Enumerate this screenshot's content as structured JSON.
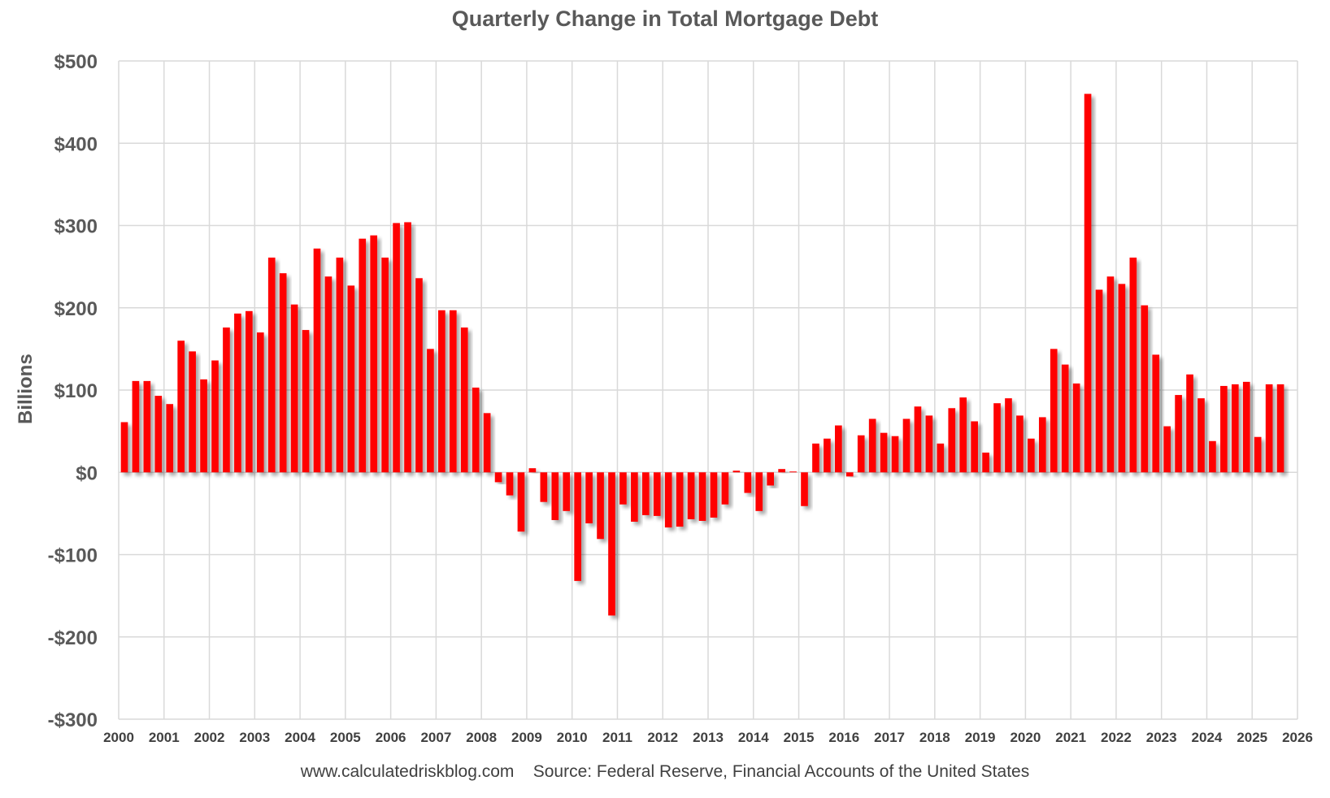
{
  "chart_data": {
    "type": "bar",
    "title": "Quarterly Change in Total Mortgage Debt",
    "ylabel": "Billions",
    "xlabel": "",
    "source": "www.calculatedriskblog.com    Source: Federal Reserve, Financial Accounts of the United States",
    "ylim": [
      -300,
      500
    ],
    "yticks": [
      500,
      400,
      300,
      200,
      100,
      0,
      -100,
      -200,
      -300
    ],
    "ytick_labels": [
      "$500",
      "$400",
      "$300",
      "$200",
      "$100",
      "$0",
      "-$100",
      "-$200",
      "-$300"
    ],
    "xlim": [
      2000,
      2026
    ],
    "xticks": [
      2000,
      2001,
      2002,
      2003,
      2004,
      2005,
      2006,
      2007,
      2008,
      2009,
      2010,
      2011,
      2012,
      2013,
      2014,
      2015,
      2016,
      2017,
      2018,
      2019,
      2020,
      2021,
      2022,
      2023,
      2024,
      2025,
      2026
    ],
    "xtick_labels": [
      "2000",
      "2001",
      "2002",
      "2003",
      "2004",
      "2005",
      "2006",
      "2007",
      "2008",
      "2009",
      "2010",
      "2011",
      "2012",
      "2013",
      "2014",
      "2015",
      "2016",
      "2017",
      "2018",
      "2019",
      "2020",
      "2021",
      "2022",
      "2023",
      "2024",
      "2025",
      "2026"
    ],
    "grid": true,
    "legend": "none",
    "bar_color": "#ff0000",
    "x": [
      "2000 Q1",
      "2000 Q2",
      "2000 Q3",
      "2000 Q4",
      "2001 Q1",
      "2001 Q2",
      "2001 Q3",
      "2001 Q4",
      "2002 Q1",
      "2002 Q2",
      "2002 Q3",
      "2002 Q4",
      "2003 Q1",
      "2003 Q2",
      "2003 Q3",
      "2003 Q4",
      "2004 Q1",
      "2004 Q2",
      "2004 Q3",
      "2004 Q4",
      "2005 Q1",
      "2005 Q2",
      "2005 Q3",
      "2005 Q4",
      "2006 Q1",
      "2006 Q2",
      "2006 Q3",
      "2006 Q4",
      "2007 Q1",
      "2007 Q2",
      "2007 Q3",
      "2007 Q4",
      "2008 Q1",
      "2008 Q2",
      "2008 Q3",
      "2008 Q4",
      "2009 Q1",
      "2009 Q2",
      "2009 Q3",
      "2009 Q4",
      "2010 Q1",
      "2010 Q2",
      "2010 Q3",
      "2010 Q4",
      "2011 Q1",
      "2011 Q2",
      "2011 Q3",
      "2011 Q4",
      "2012 Q1",
      "2012 Q2",
      "2012 Q3",
      "2012 Q4",
      "2013 Q1",
      "2013 Q2",
      "2013 Q3",
      "2013 Q4",
      "2014 Q1",
      "2014 Q2",
      "2014 Q3",
      "2014 Q4",
      "2015 Q1",
      "2015 Q2",
      "2015 Q3",
      "2015 Q4",
      "2016 Q1",
      "2016 Q2",
      "2016 Q3",
      "2016 Q4",
      "2017 Q1",
      "2017 Q2",
      "2017 Q3",
      "2017 Q4",
      "2018 Q1",
      "2018 Q2",
      "2018 Q3",
      "2018 Q4",
      "2019 Q1",
      "2019 Q2",
      "2019 Q3",
      "2019 Q4",
      "2020 Q1",
      "2020 Q2",
      "2020 Q3",
      "2020 Q4",
      "2021 Q1",
      "2021 Q2",
      "2021 Q3",
      "2021 Q4",
      "2022 Q1",
      "2022 Q2",
      "2022 Q3",
      "2022 Q4",
      "2023 Q1",
      "2023 Q2",
      "2023 Q3",
      "2023 Q4",
      "2024 Q1",
      "2024 Q2",
      "2024 Q3",
      "2024 Q4",
      "2025 Q1",
      "2025 Q2",
      "2025 Q3"
    ],
    "values": [
      61,
      111,
      111,
      93,
      83,
      160,
      147,
      113,
      136,
      176,
      193,
      196,
      170,
      261,
      242,
      204,
      173,
      272,
      238,
      261,
      227,
      284,
      288,
      261,
      303,
      304,
      236,
      150,
      197,
      197,
      176,
      103,
      72,
      -12,
      -28,
      -72,
      5,
      -36,
      -58,
      -47,
      -132,
      -62,
      -81,
      -174,
      -39,
      -60,
      -52,
      -53,
      -67,
      -66,
      -57,
      -59,
      -55,
      -39,
      2,
      -25,
      -47,
      -16,
      4,
      1,
      -41,
      35,
      41,
      57,
      -5,
      45,
      65,
      48,
      44,
      65,
      80,
      69,
      35,
      78,
      91,
      62,
      24,
      84,
      90,
      69,
      41,
      67,
      150,
      131,
      108,
      460,
      222,
      238,
      229,
      261,
      203,
      143,
      56,
      94,
      119,
      90,
      38,
      105,
      107,
      110,
      43,
      107,
      107
    ]
  }
}
